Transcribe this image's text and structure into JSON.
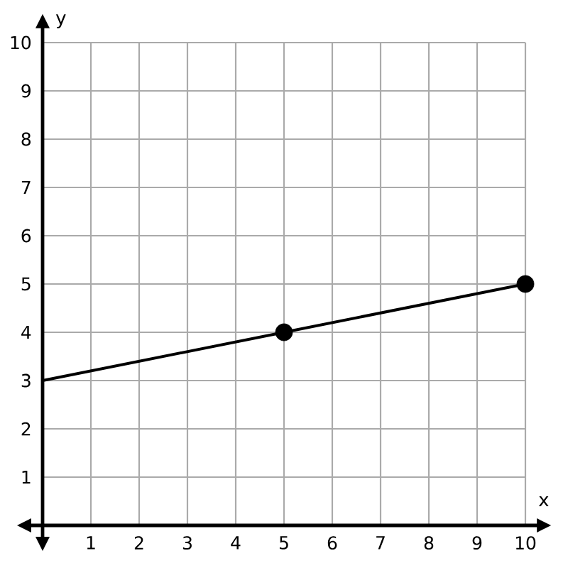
{
  "chart_data": {
    "type": "line",
    "xlabel": "x",
    "ylabel": "y",
    "xlim": [
      0,
      10
    ],
    "ylim": [
      0,
      10
    ],
    "xticks": [
      1,
      2,
      3,
      4,
      5,
      6,
      7,
      8,
      9,
      10
    ],
    "yticks": [
      1,
      2,
      3,
      4,
      5,
      6,
      7,
      8,
      9,
      10
    ],
    "grid": true,
    "series": [
      {
        "x": [
          0,
          5,
          10
        ],
        "values": [
          3,
          4,
          5
        ],
        "color": "#000000",
        "marker": "none"
      },
      {
        "type": "scatter",
        "x": [
          5,
          10
        ],
        "values": [
          4,
          5
        ],
        "color": "#000000",
        "marker": "circle"
      }
    ]
  }
}
